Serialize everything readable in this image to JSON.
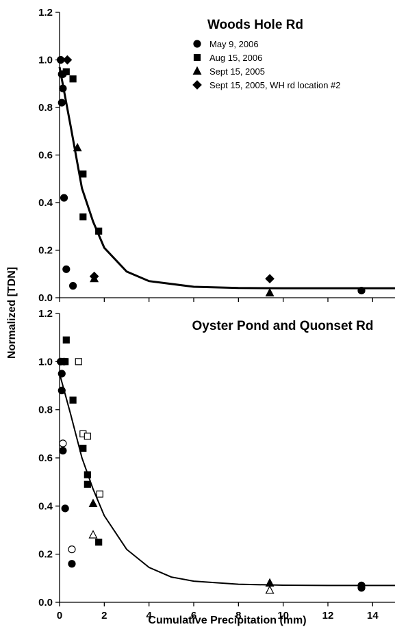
{
  "chart_data": [
    {
      "type": "scatter",
      "title": "Woods Hole Rd",
      "xlabel": "Cumulative Precipitation (mm)",
      "ylabel": "Normalized [TDN]",
      "xlim": [
        0,
        15
      ],
      "ylim": [
        0,
        1.2
      ],
      "xticks": [
        0,
        2,
        4,
        6,
        8,
        10,
        12,
        14
      ],
      "yticks": [
        0.0,
        0.2,
        0.4,
        0.6,
        0.8,
        1.0,
        1.2
      ],
      "show_x_tick_labels": false,
      "legend": "top-right",
      "series": [
        {
          "name": "May 9, 2006",
          "marker": "circle",
          "filled": true,
          "x": [
            0.05,
            0.1,
            0.15,
            0.1,
            0.15,
            0.2,
            0.3,
            0.6,
            13.5
          ],
          "y": [
            1.0,
            0.94,
            0.88,
            0.82,
            0.94,
            0.42,
            0.12,
            0.05,
            0.03
          ]
        },
        {
          "name": "Aug 15, 2006",
          "marker": "square",
          "filled": true,
          "x": [
            0.3,
            0.6,
            1.05,
            1.05,
            1.75
          ],
          "y": [
            0.95,
            0.92,
            0.52,
            0.34,
            0.28
          ]
        },
        {
          "name": "Sept 15, 2005",
          "marker": "triangle",
          "filled": true,
          "x": [
            0.8,
            1.55,
            9.4
          ],
          "y": [
            0.63,
            0.08,
            0.02
          ]
        },
        {
          "name": "Sept 15, 2005, WH rd location #2",
          "marker": "diamond",
          "filled": true,
          "x": [
            0.35,
            1.55,
            9.4
          ],
          "y": [
            1.0,
            0.09,
            0.08
          ]
        }
      ],
      "fit_curve": {
        "x": [
          0.0,
          0.5,
          1.0,
          1.5,
          2.0,
          3.0,
          4.0,
          6.0,
          8.0,
          10.0,
          12.0,
          15.0
        ],
        "y": [
          0.97,
          0.72,
          0.46,
          0.32,
          0.21,
          0.11,
          0.07,
          0.046,
          0.041,
          0.04,
          0.04,
          0.04
        ]
      }
    },
    {
      "type": "scatter",
      "title": "Oyster Pond and Quonset Rd",
      "xlabel": "Cumulative Precipitation (mm)",
      "ylabel": "Normalized [TDN]",
      "xlim": [
        0,
        15
      ],
      "ylim": [
        0,
        1.2
      ],
      "xticks": [
        0,
        2,
        4,
        6,
        8,
        10,
        12,
        14
      ],
      "yticks": [
        0.0,
        0.2,
        0.4,
        0.6,
        0.8,
        1.0,
        1.2
      ],
      "show_x_tick_labels": true,
      "series": [
        {
          "marker": "circle",
          "filled": true,
          "x": [
            0.05,
            0.2,
            0.1,
            0.1,
            0.15,
            0.25,
            0.55,
            13.5,
            13.5
          ],
          "y": [
            1.0,
            1.0,
            0.95,
            0.88,
            0.63,
            0.39,
            0.16,
            0.06,
            0.07
          ]
        },
        {
          "marker": "circle",
          "filled": false,
          "x": [
            0.15,
            0.55
          ],
          "y": [
            0.66,
            0.22
          ]
        },
        {
          "marker": "square",
          "filled": true,
          "x": [
            0.2,
            0.3,
            0.25,
            0.6,
            1.05,
            1.25,
            1.25,
            1.75
          ],
          "y": [
            1.0,
            1.09,
            1.0,
            0.84,
            0.64,
            0.53,
            0.49,
            0.25
          ]
        },
        {
          "marker": "square",
          "filled": false,
          "x": [
            0.85,
            1.05,
            1.25,
            1.8
          ],
          "y": [
            1.0,
            0.7,
            0.69,
            0.45
          ]
        },
        {
          "marker": "triangle",
          "filled": true,
          "x": [
            1.5,
            9.4
          ],
          "y": [
            0.41,
            0.08
          ]
        },
        {
          "marker": "triangle",
          "filled": false,
          "x": [
            1.5,
            9.4
          ],
          "y": [
            0.28,
            0.05
          ]
        }
      ],
      "fit_curve": {
        "x": [
          0.0,
          0.5,
          1.0,
          1.5,
          2.0,
          3.0,
          4.0,
          5.0,
          6.0,
          8.0,
          10.0,
          12.0,
          15.0
        ],
        "y": [
          0.95,
          0.78,
          0.6,
          0.47,
          0.36,
          0.22,
          0.145,
          0.105,
          0.088,
          0.075,
          0.071,
          0.07,
          0.07
        ]
      }
    }
  ]
}
